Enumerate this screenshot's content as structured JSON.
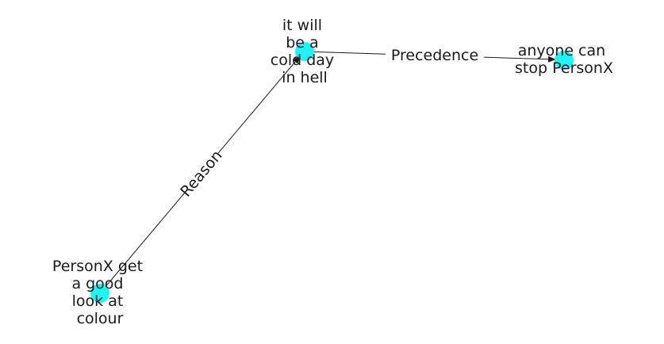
{
  "nodes": [
    {
      "id": "cold_day",
      "label_lines": [
        "it will",
        "be a",
        "cold day",
        "in hell"
      ]
    },
    {
      "id": "stop",
      "label_lines": [
        "anyone can",
        "stop PersonX"
      ]
    },
    {
      "id": "colour",
      "label_lines": [
        "PersonX get",
        "a good",
        "look at",
        "colour"
      ]
    }
  ],
  "edges": [
    {
      "from": "cold_day",
      "to": "stop",
      "label": "Precedence"
    },
    {
      "from": "colour",
      "to": "cold_day",
      "label": "Reason"
    }
  ],
  "colors": {
    "node": "#1ff3f3",
    "edge": "#1a1a1a",
    "text": "#1a1a1a"
  }
}
